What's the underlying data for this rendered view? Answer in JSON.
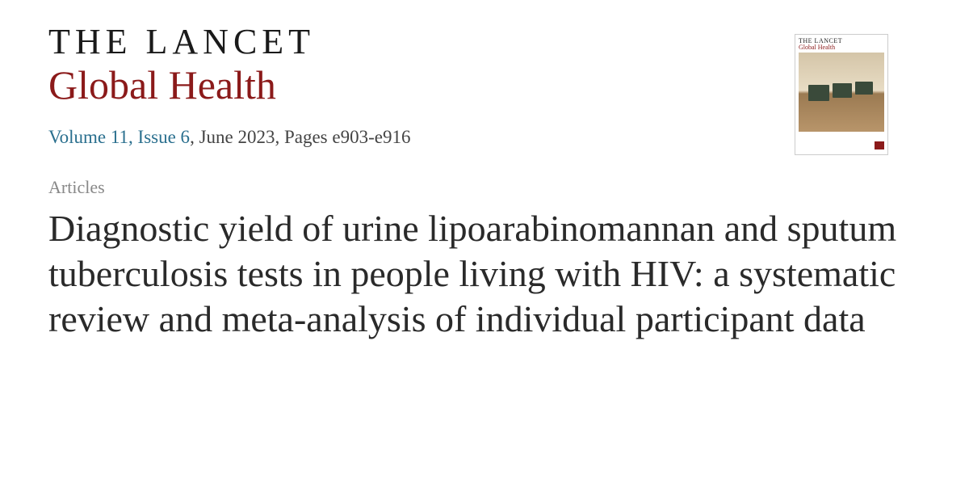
{
  "journal": {
    "name_line1": "THE LANCET",
    "name_line2": "Global Health"
  },
  "issue": {
    "volume_issue": "Volume 11, Issue 6",
    "date_pages": ", June 2023, Pages e903-e916"
  },
  "article": {
    "section": "Articles",
    "title": "Diagnostic yield of urine lipoarabinomannan and sputum tuberculosis tests in people living with HIV: a systematic review and meta-analysis of individual participant data"
  },
  "cover": {
    "mini_title": "THE LANCET",
    "mini_subtitle": "Global Health"
  },
  "colors": {
    "brand_red": "#8b1a1a",
    "link_blue": "#2a6f8e",
    "text_dark": "#2a2a2a",
    "text_muted": "#888"
  }
}
